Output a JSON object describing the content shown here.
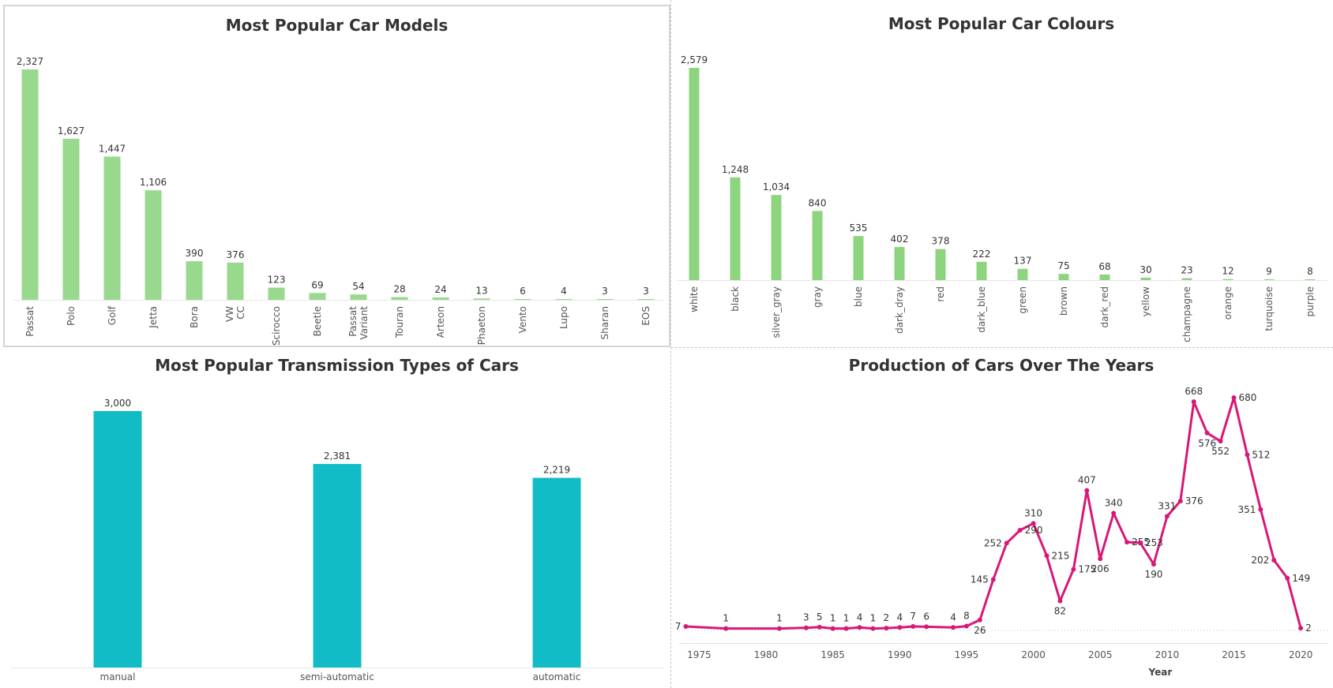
{
  "chart_data": [
    {
      "id": "models",
      "type": "bar",
      "title": "Most Popular Car Models",
      "categories": [
        "Passat",
        "Polo",
        "Golf",
        "Jetta",
        "Bora",
        "VW CC",
        "Scirocco",
        "Beetle",
        "Passat Variant",
        "Touran",
        "Arteon",
        "Phaeton",
        "Vento",
        "Lupo",
        "Sharan",
        "EOS"
      ],
      "values": [
        2327,
        1627,
        1447,
        1106,
        390,
        376,
        123,
        69,
        54,
        28,
        24,
        13,
        6,
        4,
        3,
        3
      ],
      "labels": [
        "2,327",
        "1,627",
        "1,447",
        "1,106",
        "390",
        "376",
        "123",
        "69",
        "54",
        "28",
        "24",
        "13",
        "6",
        "4",
        "3",
        "3"
      ],
      "color": "#98d98e",
      "ylim": [
        0,
        2327
      ]
    },
    {
      "id": "colours",
      "type": "bar",
      "title": "Most Popular Car Colours",
      "categories": [
        "white",
        "black",
        "silver_gray",
        "gray",
        "blue",
        "dark_dray",
        "red",
        "dark_blue",
        "green",
        "brown",
        "dark_red",
        "yellow",
        "champagne",
        "orange",
        "turquoise",
        "purple"
      ],
      "values": [
        2579,
        1248,
        1034,
        840,
        535,
        402,
        378,
        222,
        137,
        75,
        68,
        30,
        23,
        12,
        9,
        8
      ],
      "labels": [
        "2,579",
        "1,248",
        "1,034",
        "840",
        "535",
        "402",
        "378",
        "222",
        "137",
        "75",
        "68",
        "30",
        "23",
        "12",
        "9",
        "8"
      ],
      "color": "#8dd47f",
      "ylim": [
        0,
        2579
      ]
    },
    {
      "id": "transmission",
      "type": "bar",
      "title": "Most Popular Transmission Types of Cars",
      "categories": [
        "manual",
        "semi-automatic",
        "automatic"
      ],
      "values": [
        3000,
        2381,
        2219
      ],
      "labels": [
        "3,000",
        "2,381",
        "2,219"
      ],
      "color": "#12bcc7",
      "ylim": [
        0,
        3000
      ]
    },
    {
      "id": "years",
      "type": "line",
      "title": "Production of Cars Over The Years",
      "xlabel": "Year",
      "x": [
        1974,
        1977,
        1981,
        1983,
        1984,
        1985,
        1986,
        1987,
        1988,
        1989,
        1990,
        1991,
        1992,
        1994,
        1995,
        1996,
        1997,
        1998,
        1999,
        2000,
        2001,
        2002,
        2003,
        2004,
        2005,
        2006,
        2007,
        2008,
        2009,
        2010,
        2011,
        2012,
        2013,
        2014,
        2015,
        2016,
        2017,
        2018,
        2019,
        2020
      ],
      "y": [
        7,
        1,
        1,
        3,
        5,
        1,
        1,
        4,
        1,
        2,
        4,
        7,
        6,
        4,
        8,
        26,
        145,
        252,
        290,
        310,
        215,
        82,
        175,
        407,
        206,
        340,
        255,
        253,
        190,
        331,
        376,
        668,
        576,
        552,
        680,
        512,
        351,
        202,
        149,
        2
      ],
      "label_pos": [
        "l",
        "t",
        "t",
        "t",
        "t",
        "t",
        "t",
        "t",
        "t",
        "t",
        "t",
        "t",
        "t",
        "t",
        "t",
        "b",
        "l",
        "l",
        "r",
        "t",
        "r",
        "b",
        "r",
        "t",
        "b",
        "t",
        "r",
        "r",
        "b",
        "t",
        "r",
        "t",
        "b",
        "b",
        "r",
        "r",
        "l",
        "l",
        "r",
        "r"
      ],
      "xticks": [
        1975,
        1980,
        1985,
        1990,
        1995,
        2000,
        2005,
        2010,
        2015,
        2020
      ],
      "xlim": [
        1973.5,
        2022
      ],
      "ylim": [
        0,
        680
      ],
      "color": "#d81876"
    }
  ]
}
